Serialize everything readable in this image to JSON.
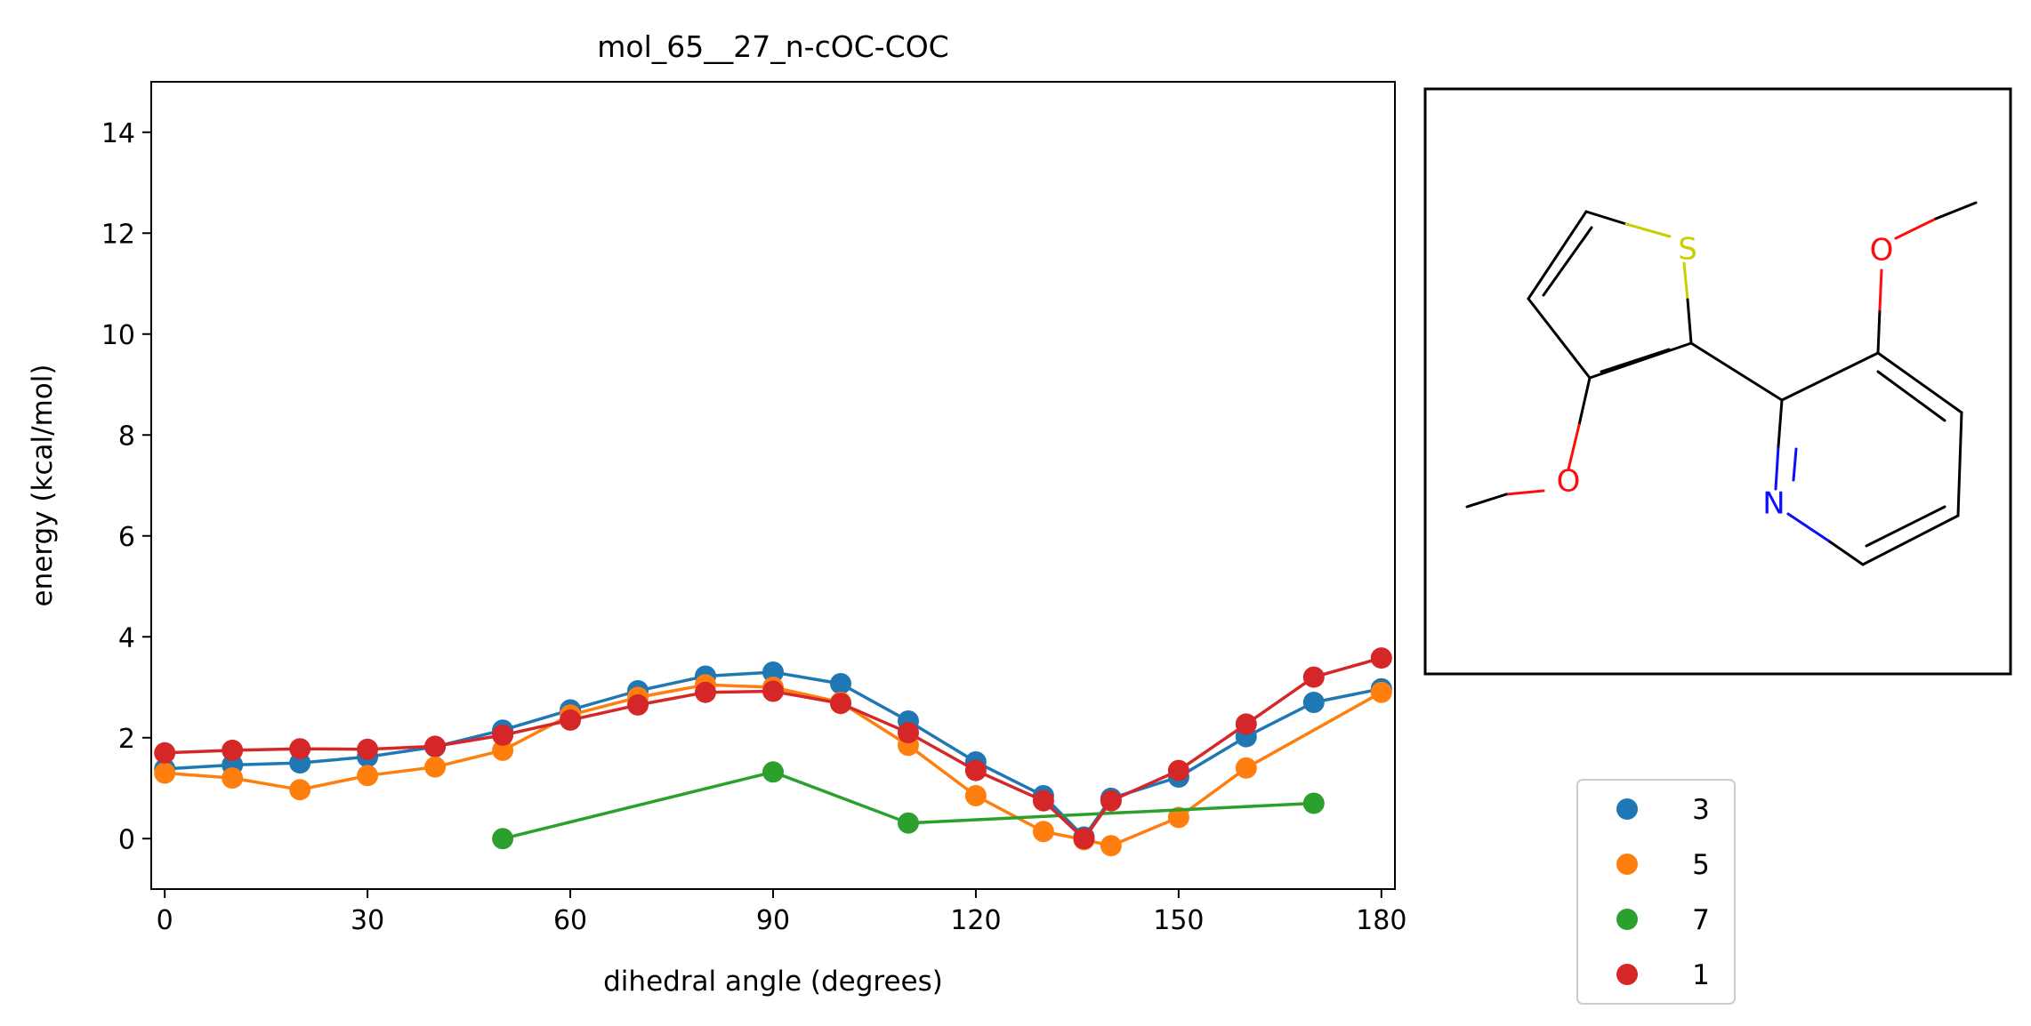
{
  "chart_data": {
    "type": "line",
    "title": "mol_65__27_n-cOC-COC",
    "xlabel": "dihedral angle (degrees)",
    "ylabel": "energy (kcal/mol)",
    "xlim": [
      -2,
      182
    ],
    "ylim": [
      -1,
      15
    ],
    "xticks": [
      "0",
      "30",
      "60",
      "90",
      "120",
      "150",
      "180"
    ],
    "yticks": [
      "0",
      "2",
      "4",
      "6",
      "8",
      "10",
      "12",
      "14"
    ],
    "grid": false,
    "legend_position": "below-right",
    "series": [
      {
        "name": "3",
        "color": "#1f77b4",
        "points": [
          [
            0,
            1.38
          ],
          [
            10,
            1.46
          ],
          [
            20,
            1.5
          ],
          [
            30,
            1.62
          ],
          [
            40,
            1.82
          ],
          [
            50,
            2.15
          ],
          [
            60,
            2.55
          ],
          [
            70,
            2.93
          ],
          [
            80,
            3.22
          ],
          [
            90,
            3.3
          ],
          [
            100,
            3.07
          ],
          [
            110,
            2.33
          ],
          [
            120,
            1.52
          ],
          [
            130,
            0.85
          ],
          [
            136,
            0.03
          ],
          [
            140,
            0.8
          ],
          [
            150,
            1.22
          ],
          [
            160,
            2.02
          ],
          [
            170,
            2.7
          ],
          [
            180,
            2.97
          ]
        ]
      },
      {
        "name": "5",
        "color": "#ff7f0e",
        "points": [
          [
            0,
            1.3
          ],
          [
            10,
            1.2
          ],
          [
            20,
            0.97
          ],
          [
            30,
            1.25
          ],
          [
            40,
            1.42
          ],
          [
            50,
            1.75
          ],
          [
            60,
            2.45
          ],
          [
            70,
            2.8
          ],
          [
            80,
            3.05
          ],
          [
            90,
            3.0
          ],
          [
            100,
            2.7
          ],
          [
            110,
            1.85
          ],
          [
            120,
            0.85
          ],
          [
            130,
            0.14
          ],
          [
            136,
            -0.02
          ],
          [
            140,
            -0.14
          ],
          [
            150,
            0.42
          ],
          [
            160,
            1.4
          ],
          [
            180,
            2.9
          ]
        ]
      },
      {
        "name": "7",
        "color": "#2ca02c",
        "points": [
          [
            50,
            0.0
          ],
          [
            90,
            1.32
          ],
          [
            110,
            0.31
          ],
          [
            170,
            0.7
          ]
        ]
      },
      {
        "name": "1",
        "color": "#d62728",
        "points": [
          [
            0,
            1.7
          ],
          [
            10,
            1.75
          ],
          [
            20,
            1.78
          ],
          [
            30,
            1.77
          ],
          [
            40,
            1.83
          ],
          [
            50,
            2.05
          ],
          [
            60,
            2.35
          ],
          [
            70,
            2.65
          ],
          [
            80,
            2.9
          ],
          [
            90,
            2.92
          ],
          [
            100,
            2.68
          ],
          [
            110,
            2.1
          ],
          [
            120,
            1.35
          ],
          [
            130,
            0.75
          ],
          [
            136,
            0.0
          ],
          [
            140,
            0.75
          ],
          [
            150,
            1.35
          ],
          [
            160,
            2.27
          ],
          [
            170,
            3.2
          ],
          [
            180,
            3.58
          ]
        ]
      }
    ]
  },
  "molecule": {
    "atoms": [
      {
        "symbol": "S",
        "color": "#cccc00"
      },
      {
        "symbol": "O",
        "color": "#ff0d0d"
      },
      {
        "symbol": "O",
        "color": "#ff0d0d"
      },
      {
        "symbol": "N",
        "color": "#0d0dff"
      }
    ]
  }
}
